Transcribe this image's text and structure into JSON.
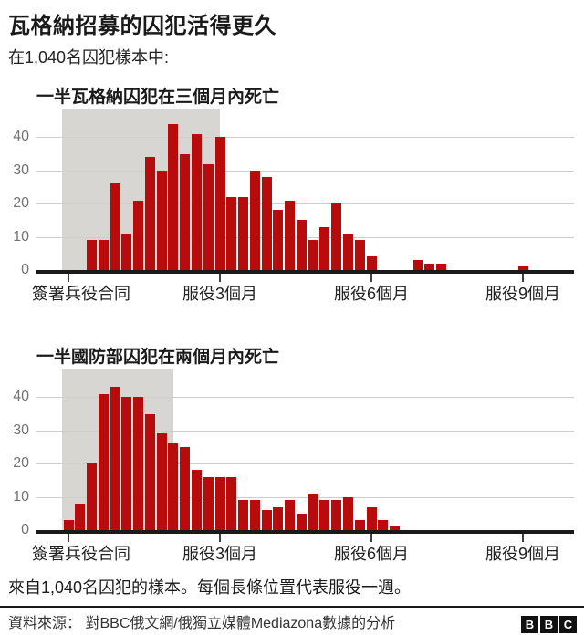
{
  "header": {
    "title": "瓦格納招募的囚犯活得更久",
    "subtitle": "在1,040名囚犯樣本中:"
  },
  "axis": {
    "y_ticks": [
      0,
      10,
      20,
      30,
      40
    ],
    "x_ticks": [
      {
        "week": 0,
        "label": "簽署兵役合同"
      },
      {
        "week": 13,
        "label": "服役3個月"
      },
      {
        "week": 26,
        "label": "服役6個月"
      },
      {
        "week": 39,
        "label": "服役9個月"
      }
    ]
  },
  "chart_data": [
    {
      "type": "bar",
      "title": "一半瓦格納囚犯在三個月內死亡",
      "group": "瓦格納",
      "x_unit": "服役週數（每個長條代表一週）",
      "weeks": 43,
      "values": [
        0,
        0,
        9,
        9,
        26,
        11,
        21,
        34,
        30,
        44,
        35,
        41,
        32,
        40,
        22,
        22,
        30,
        28,
        18,
        21,
        15,
        9,
        13,
        20,
        11,
        9,
        4,
        0,
        0,
        0,
        3,
        2,
        2,
        0,
        0,
        0,
        0,
        0,
        0,
        1,
        0,
        0,
        0
      ],
      "highlight_until_week": 13,
      "ylim": [
        0,
        48
      ],
      "gridlines": [
        10,
        20,
        30,
        40
      ],
      "legend": "none"
    },
    {
      "type": "bar",
      "title": "一半國防部囚犯在兩個月內死亡",
      "group": "國防部",
      "x_unit": "服役週數（每個長條代表一週）",
      "weeks": 43,
      "values": [
        3,
        8,
        20,
        41,
        43,
        40,
        40,
        35,
        29,
        26,
        25,
        18,
        16,
        16,
        16,
        9,
        9,
        6,
        7,
        9,
        5,
        11,
        9,
        9,
        10,
        3,
        7,
        3,
        1,
        0,
        0,
        0,
        0,
        0,
        0,
        0,
        0,
        0,
        0,
        0,
        0,
        0,
        0
      ],
      "highlight_until_week": 9,
      "ylim": [
        0,
        48
      ],
      "gridlines": [
        10,
        20,
        30,
        40
      ],
      "legend": "none"
    }
  ],
  "footer": {
    "note": "來自1,040名囚犯的樣本。每個長條位置代表服役一週。",
    "source_label": "資料來源：",
    "source": "對BBC俄文網/俄獨立媒體Mediazona數據的分析",
    "logo_letters": [
      "B",
      "B",
      "C"
    ]
  },
  "colors": {
    "bar_red": "#b80c0c",
    "highlight_gray": "#d7d6d2",
    "gridline": "#cfcecb",
    "axis_black": "#1a1a1a",
    "y_label_gray": "#737373"
  }
}
